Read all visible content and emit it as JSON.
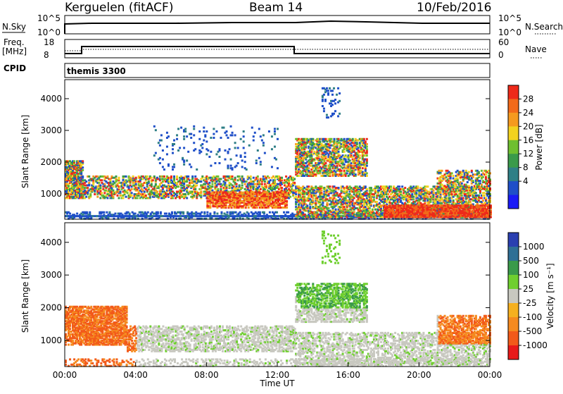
{
  "header": {
    "station": "Kerguelen (fitACF)",
    "beam": "Beam 14",
    "date": "10/Feb/2016"
  },
  "top_panels": {
    "nsky": {
      "label": "N.Sky",
      "ticks": [
        "10^5",
        "10^0"
      ],
      "right_label": "N.Search",
      "right_ticks": [
        "10^5",
        "10^0"
      ]
    },
    "freq": {
      "label_line1": "Freq.",
      "label_line2": "[MHz]",
      "ticks": [
        "18",
        "8"
      ],
      "right_label": "Nave",
      "right_ticks": [
        "60",
        "0"
      ]
    },
    "cpid": {
      "label": "CPID",
      "value": "themis 3300"
    }
  },
  "chart_data": [
    {
      "type": "heatmap",
      "title": "",
      "ylabel": "Slant Range [km]",
      "xlabel": "",
      "y_ticks": [
        "1000",
        "2000",
        "3000",
        "4000"
      ],
      "ylim": [
        200,
        4600
      ],
      "xlim_hours": [
        0,
        24
      ],
      "colorbar": {
        "label": "Power [dB]",
        "ticks": [
          "4",
          "8",
          "12",
          "16",
          "20",
          "24",
          "28"
        ],
        "colors": [
          "#1a1af5",
          "#1f4fc8",
          "#2f7f86",
          "#3a9a4a",
          "#6fbf2f",
          "#f2d21f",
          "#f59a1f",
          "#f26a1a",
          "#ee2a1a"
        ]
      },
      "features": [
        {
          "name": "ground-band-low",
          "t": [
            0,
            24
          ],
          "range": [
            250,
            450
          ]
        },
        {
          "name": "echo-morning",
          "t": [
            0,
            13
          ],
          "range": [
            700,
            1500
          ]
        },
        {
          "name": "echo-upper",
          "t": [
            13,
            17
          ],
          "range": [
            1700,
            2800
          ]
        },
        {
          "name": "echo-late",
          "t": [
            17,
            24
          ],
          "range": [
            300,
            1300
          ]
        }
      ]
    },
    {
      "type": "heatmap",
      "title": "",
      "ylabel": "Slant Range [km]",
      "xlabel": "Time UT",
      "x_ticks": [
        "00:00",
        "04:00",
        "08:00",
        "12:00",
        "16:00",
        "20:00",
        "00:00"
      ],
      "y_ticks": [
        "1000",
        "2000",
        "3000",
        "4000"
      ],
      "ylim": [
        200,
        4600
      ],
      "xlim_hours": [
        0,
        24
      ],
      "colorbar": {
        "label": "Velocity [m s⁻¹]",
        "ticks": [
          "1000",
          "500",
          "100",
          "25",
          "-25",
          "-100",
          "-500",
          "-1000"
        ],
        "colors": [
          "#2a3fb0",
          "#2f6f95",
          "#3a9a4a",
          "#6fcf2f",
          "#c8c8c0",
          "#f5b01f",
          "#f58a1f",
          "#f25a1a",
          "#e81a1a"
        ]
      }
    }
  ]
}
